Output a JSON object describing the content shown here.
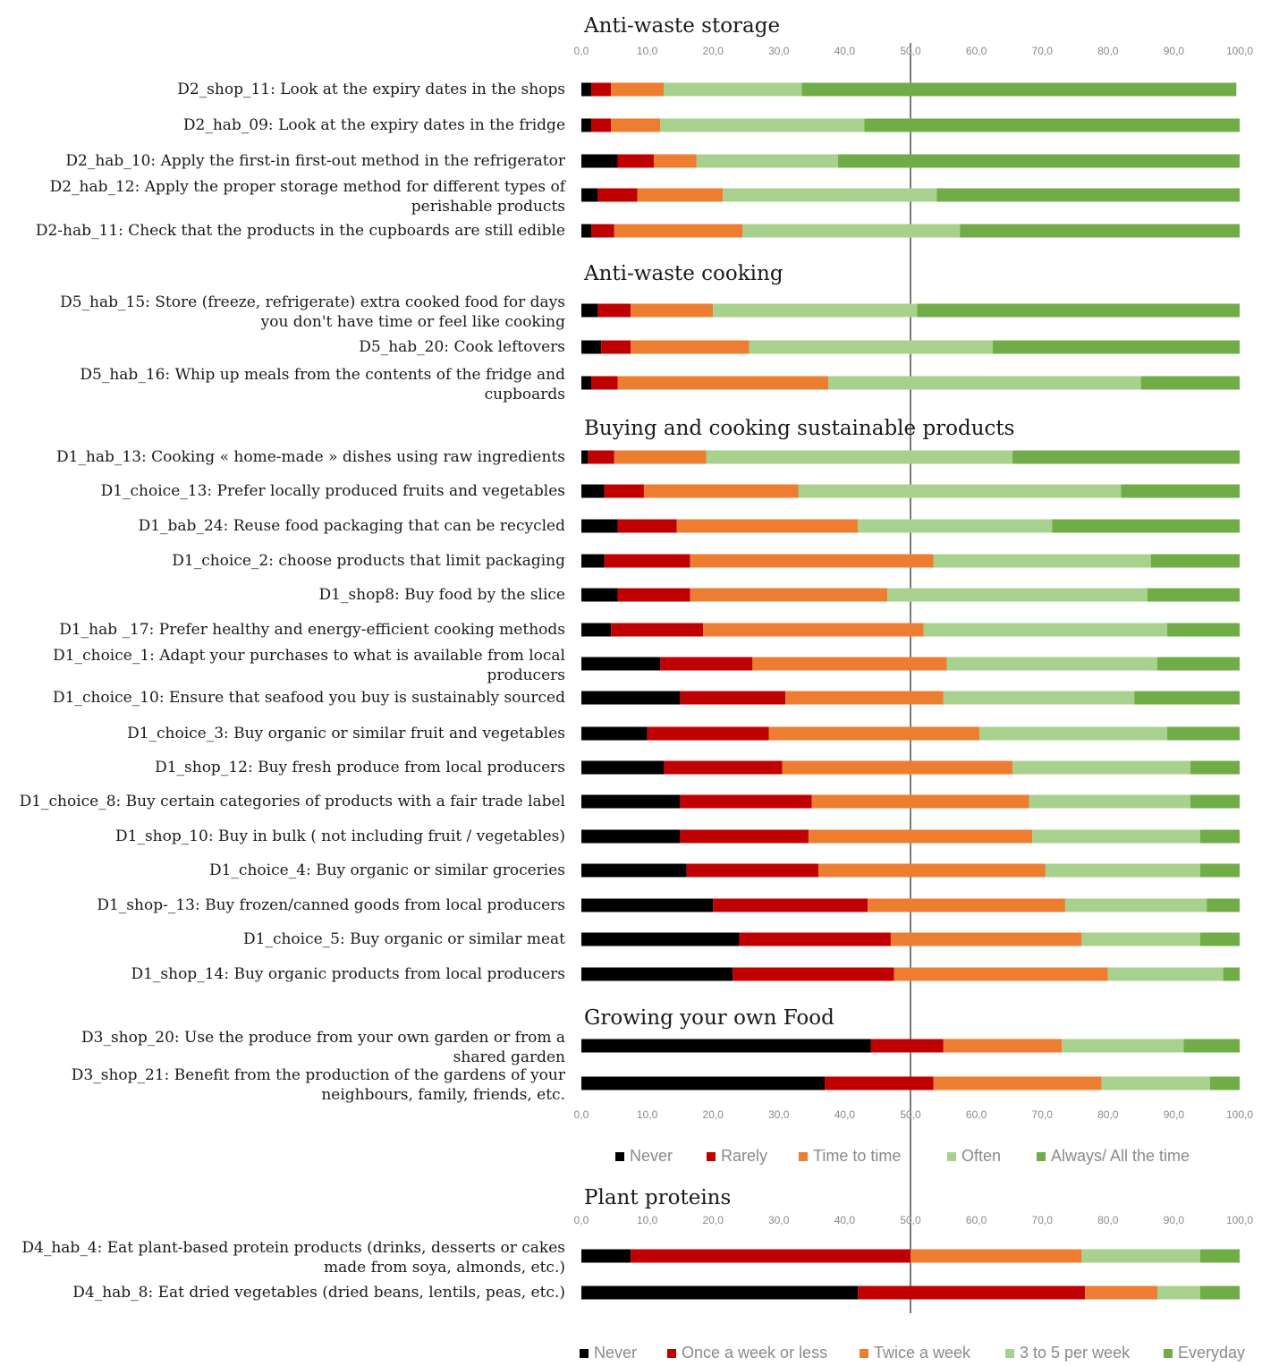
{
  "chart_data": {
    "type": "bar",
    "orientation": "horizontal",
    "stacked": true,
    "xlim": [
      0,
      100
    ],
    "x_ticks": [
      "0,0",
      "10,0",
      "20,0",
      "30,0",
      "40,0",
      "50,0",
      "60,0",
      "70,0",
      "80,0",
      "90,0",
      "100,0"
    ],
    "reference_line_x": 50,
    "colors": [
      "#000000",
      "#c00000",
      "#ed7d31",
      "#a9d18e",
      "#70ad47"
    ],
    "legends": [
      {
        "id": "freq",
        "entries": [
          "Never",
          "Rarely",
          "Time to time",
          "Often",
          "Always/ All the time"
        ]
      },
      {
        "id": "protein",
        "entries": [
          "Never",
          "Once a week or less",
          "Twice a week",
          "3 to 5 per week",
          "Everyday"
        ]
      }
    ],
    "sections": [
      {
        "title": "Anti-waste storage",
        "rows": [
          {
            "label": [
              "D2_shop_11: Look at the expiry dates in the shops"
            ],
            "values": [
              1.5,
              3,
              8,
              21,
              66
            ]
          },
          {
            "label": [
              "D2_hab_09: Look at the expiry dates in the fridge"
            ],
            "values": [
              1.5,
              3,
              7.5,
              31,
              57
            ]
          },
          {
            "label": [
              "D2_hab_10: Apply the first-in first-out method in the refrigerator"
            ],
            "values": [
              5.5,
              5.5,
              6.5,
              21.5,
              61
            ]
          },
          {
            "label": [
              "D2_hab_12: Apply the proper storage method for different types of",
              "perishable products"
            ],
            "values": [
              2.5,
              6,
              13,
              32.5,
              46
            ]
          },
          {
            "label": [
              "D2-hab_11: Check that the products in the cupboards are still edible"
            ],
            "values": [
              1.5,
              3.5,
              19.5,
              33,
              42.5
            ]
          }
        ]
      },
      {
        "title": "Anti-waste cooking",
        "rows": [
          {
            "label": [
              "D5_hab_15: Store (freeze, refrigerate) extra cooked food for days",
              "you don't have time or feel like cooking"
            ],
            "values": [
              2.5,
              5,
              12.5,
              31,
              49
            ]
          },
          {
            "label": [
              "D5_hab_20: Cook leftovers"
            ],
            "values": [
              3,
              4.5,
              18,
              37,
              37.5
            ]
          },
          {
            "label": [
              "D5_hab_16: Whip up meals from the contents of the fridge and",
              "cupboards"
            ],
            "values": [
              1.5,
              4,
              32,
              47.5,
              15
            ]
          }
        ]
      },
      {
        "title": "Buying and cooking sustainable products",
        "rows": [
          {
            "label": [
              "D1_hab_13: Cooking « home-made » dishes using raw ingredients"
            ],
            "values": [
              1,
              4,
              14,
              46.5,
              34.5
            ]
          },
          {
            "label": [
              "D1_choice_13: Prefer locally produced fruits and vegetables"
            ],
            "values": [
              3.5,
              6,
              23.5,
              49,
              18
            ]
          },
          {
            "label": [
              "D1_bab_24: Reuse food packaging that can be recycled"
            ],
            "values": [
              5.5,
              9,
              27.5,
              29.5,
              28.5
            ]
          },
          {
            "label": [
              "D1_choice_2: choose products that limit packaging"
            ],
            "values": [
              3.5,
              13,
              37,
              33,
              13.5
            ]
          },
          {
            "label": [
              "D1_shop8: Buy food by the slice"
            ],
            "values": [
              5.5,
              11,
              30,
              39.5,
              14
            ]
          },
          {
            "label": [
              "D1_hab _17: Prefer healthy and energy-efficient cooking methods"
            ],
            "values": [
              4.5,
              14,
              33.5,
              37,
              11
            ]
          },
          {
            "label": [
              "D1_choice_1: Adapt your purchases to what is available from local",
              "producers"
            ],
            "values": [
              12,
              14,
              29.5,
              32,
              12.5
            ]
          },
          {
            "label": [
              "D1_choice_10: Ensure that seafood you buy is sustainably sourced"
            ],
            "values": [
              15,
              16,
              24,
              29,
              16
            ]
          },
          {
            "label": [
              "D1_choice_3: Buy organic or similar fruit and vegetables"
            ],
            "values": [
              10,
              18.5,
              32,
              28.5,
              11
            ]
          },
          {
            "label": [
              "D1_shop_12: Buy fresh produce from local producers"
            ],
            "values": [
              12.5,
              18,
              35,
              27,
              7.5
            ]
          },
          {
            "label": [
              "D1_choice_8: Buy certain categories of  products with a fair trade label"
            ],
            "values": [
              15,
              20,
              33,
              24.5,
              7.5
            ]
          },
          {
            "label": [
              "D1_shop_10: Buy in bulk ( not including fruit / vegetables)"
            ],
            "values": [
              15,
              19.5,
              34,
              25.5,
              6
            ]
          },
          {
            "label": [
              "D1_choice_4: Buy organic or similar groceries"
            ],
            "values": [
              16,
              20,
              34.5,
              23.5,
              6
            ]
          },
          {
            "label": [
              "D1_shop-_13: Buy frozen/canned goods from local producers"
            ],
            "values": [
              20,
              23.5,
              30,
              21.5,
              5
            ]
          },
          {
            "label": [
              "D1_choice_5: Buy organic or similar meat"
            ],
            "values": [
              24,
              23,
              29,
              18,
              6
            ]
          },
          {
            "label": [
              "D1_shop_14: Buy organic products from local producers"
            ],
            "values": [
              23,
              24.5,
              32.5,
              17.5,
              2.5
            ]
          }
        ]
      },
      {
        "title": "Growing your own Food",
        "rows": [
          {
            "label": [
              "D3_shop_20: Use the produce  from your own garden or from a",
              "shared garden"
            ],
            "values": [
              44,
              11,
              18,
              18.5,
              8.5
            ]
          },
          {
            "label": [
              "D3_shop_21: Benefit from the production of the gardens of your",
              "neighbours, family, friends, etc."
            ],
            "values": [
              37,
              16.5,
              25.5,
              16.5,
              4.5
            ]
          }
        ]
      },
      {
        "title": "Plant proteins",
        "rows": [
          {
            "label": [
              "D4_hab_4: Eat plant-based protein products (drinks, desserts or cakes",
              "made from soya, almonds, etc.)"
            ],
            "values": [
              7.5,
              42.5,
              26,
              18,
              6
            ]
          },
          {
            "label": [
              "D4_hab_8: Eat dried vegetables (dried beans, lentils, peas, etc.)"
            ],
            "values": [
              42,
              34.5,
              11,
              6.5,
              6
            ]
          }
        ]
      }
    ]
  }
}
